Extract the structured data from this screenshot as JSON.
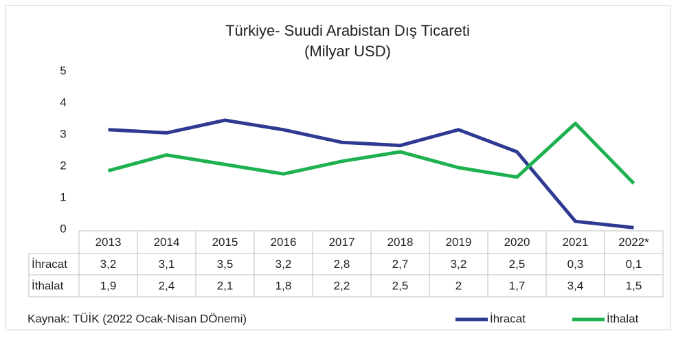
{
  "chart_data": {
    "type": "line",
    "title": "Türkiye- Suudi Arabistan Dış Ticareti",
    "subtitle": "(Milyar USD)",
    "source": "Kaynak: TÜİK (2022 Ocak-Nisan DÖnemi)",
    "categories": [
      "2013",
      "2014",
      "2015",
      "2016",
      "2017",
      "2018",
      "2019",
      "2020",
      "2021",
      "2022*"
    ],
    "series": [
      {
        "name": "İhracat",
        "color": "#2e3a92",
        "values": [
          3.2,
          3.1,
          3.5,
          3.2,
          2.8,
          2.7,
          3.2,
          2.5,
          0.3,
          0.1
        ],
        "value_labels": [
          "3,2",
          "3,1",
          "3,5",
          "3,2",
          "2,8",
          "2,7",
          "3,2",
          "2,5",
          "0,3",
          "0,1"
        ]
      },
      {
        "name": "İthalat",
        "color": "#1db24f",
        "values": [
          1.9,
          2.4,
          2.1,
          1.8,
          2.2,
          2.5,
          2,
          1.7,
          3.4,
          1.5
        ],
        "value_labels": [
          "1,9",
          "2,4",
          "2,1",
          "1,8",
          "2,2",
          "2,5",
          "2",
          "1,7",
          "3,4",
          "1,5"
        ]
      }
    ],
    "ylim": [
      0,
      5
    ],
    "yticks": [
      0,
      1,
      2,
      3,
      4,
      5
    ],
    "grid": false,
    "legend": "bottom-right"
  }
}
